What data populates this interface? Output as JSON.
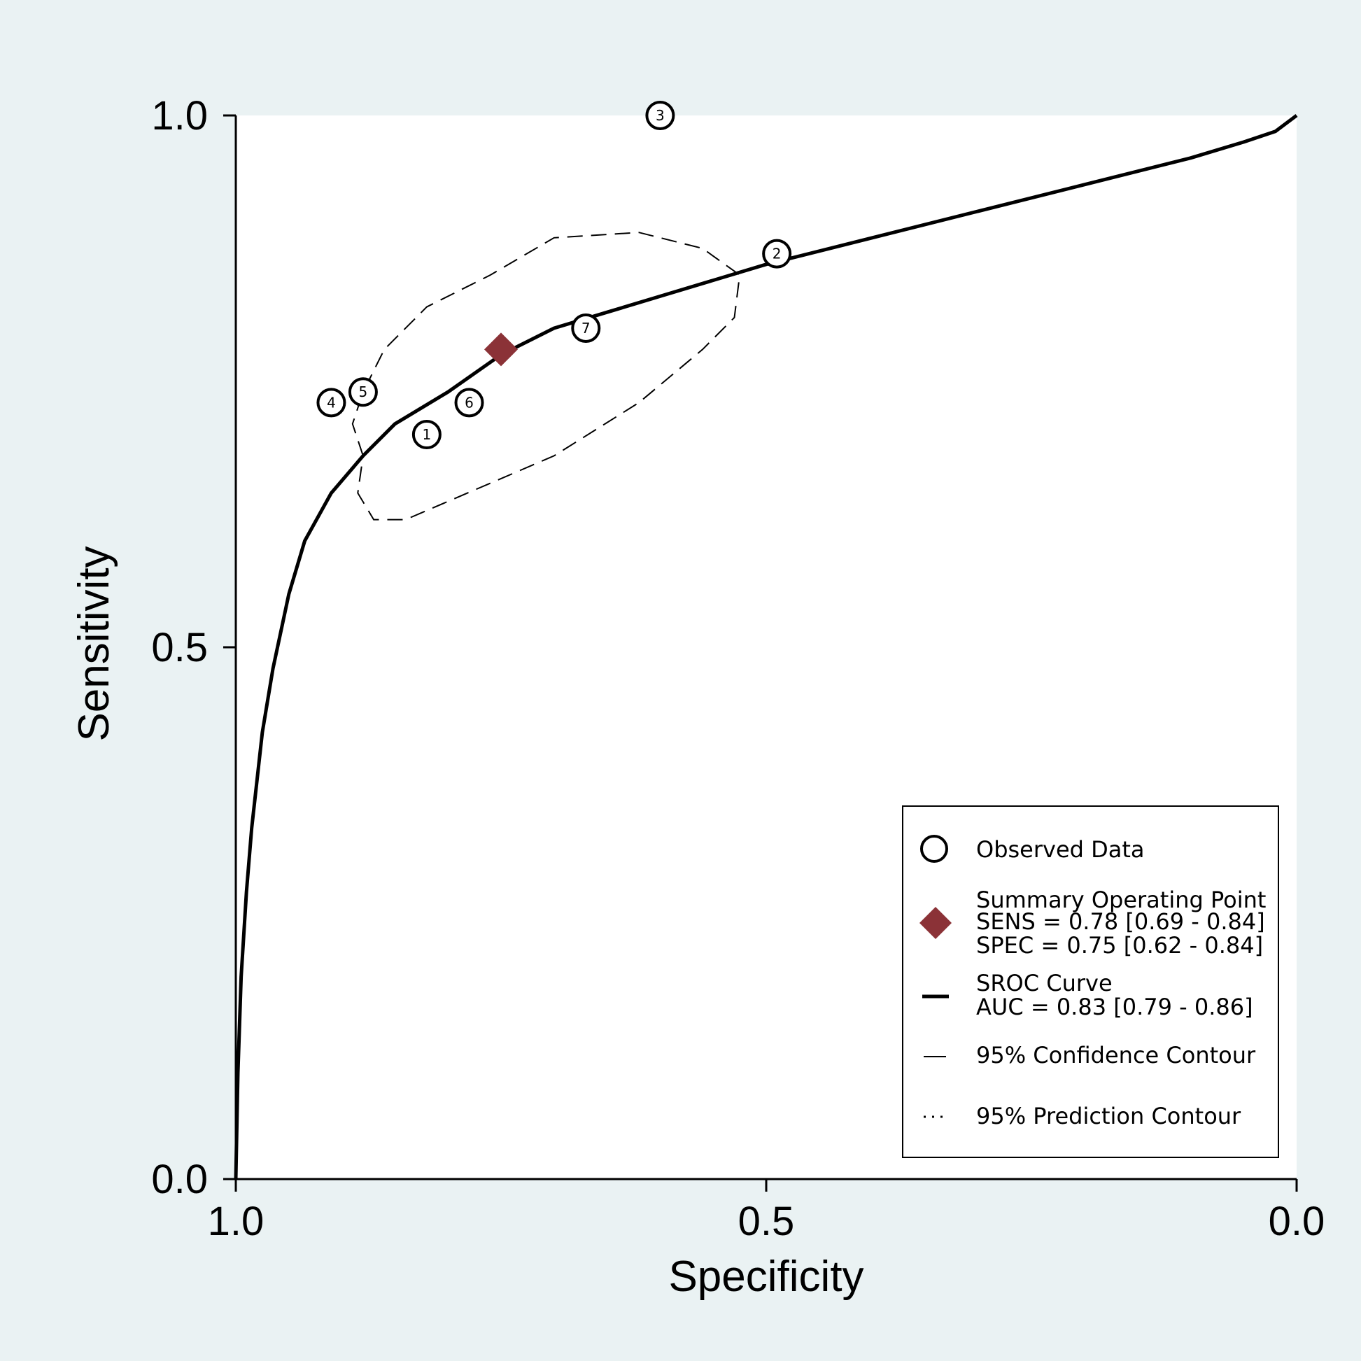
{
  "chart_data": {
    "type": "scatter",
    "xlabel": "Specificity",
    "ylabel": "Sensitivity",
    "xlim": [
      1.0,
      0.0
    ],
    "ylim": [
      0.0,
      1.0
    ],
    "x_reversed": true,
    "grid": false,
    "x_ticks": [
      "1.0",
      "0.5",
      "0.0"
    ],
    "y_ticks": [
      "0.0",
      "0.5",
      "1.0"
    ],
    "studies": [
      {
        "label": "1",
        "specificity": 0.82,
        "sensitivity": 0.7
      },
      {
        "label": "2",
        "specificity": 0.49,
        "sensitivity": 0.87
      },
      {
        "label": "3",
        "specificity": 0.6,
        "sensitivity": 1.0
      },
      {
        "label": "4",
        "specificity": 0.91,
        "sensitivity": 0.73
      },
      {
        "label": "5",
        "specificity": 0.88,
        "sensitivity": 0.74
      },
      {
        "label": "6",
        "specificity": 0.78,
        "sensitivity": 0.73
      },
      {
        "label": "7",
        "specificity": 0.67,
        "sensitivity": 0.8
      }
    ],
    "summary_point": {
      "specificity": 0.75,
      "sensitivity": 0.78
    },
    "sroc_curve": [
      [
        1.0,
        0.0
      ],
      [
        0.998,
        0.1
      ],
      [
        0.995,
        0.19
      ],
      [
        0.99,
        0.27
      ],
      [
        0.985,
        0.33
      ],
      [
        0.975,
        0.42
      ],
      [
        0.965,
        0.48
      ],
      [
        0.95,
        0.55
      ],
      [
        0.935,
        0.6
      ],
      [
        0.91,
        0.645
      ],
      [
        0.88,
        0.68
      ],
      [
        0.85,
        0.71
      ],
      [
        0.8,
        0.74
      ],
      [
        0.75,
        0.775
      ],
      [
        0.7,
        0.8
      ],
      [
        0.65,
        0.815
      ],
      [
        0.6,
        0.83
      ],
      [
        0.5,
        0.86
      ],
      [
        0.4,
        0.885
      ],
      [
        0.3,
        0.91
      ],
      [
        0.2,
        0.935
      ],
      [
        0.1,
        0.96
      ],
      [
        0.05,
        0.975
      ],
      [
        0.02,
        0.985
      ],
      [
        0.0,
        1.0
      ]
    ],
    "confidence_contour": [
      [
        0.88,
        0.68
      ],
      [
        0.89,
        0.71
      ],
      [
        0.88,
        0.74
      ],
      [
        0.86,
        0.78
      ],
      [
        0.82,
        0.82
      ],
      [
        0.76,
        0.85
      ],
      [
        0.7,
        0.885
      ],
      [
        0.62,
        0.89
      ],
      [
        0.56,
        0.875
      ],
      [
        0.525,
        0.85
      ],
      [
        0.53,
        0.81
      ],
      [
        0.56,
        0.78
      ],
      [
        0.62,
        0.73
      ],
      [
        0.7,
        0.68
      ],
      [
        0.77,
        0.65
      ],
      [
        0.84,
        0.62
      ],
      [
        0.87,
        0.62
      ],
      [
        0.885,
        0.645
      ],
      [
        0.88,
        0.68
      ]
    ],
    "legend": {
      "position": "bottom-right",
      "observed": "Observed Data",
      "summary_title": "Summary Operating Point",
      "summary_sens": "SENS = 0.78 [0.69 - 0.84]",
      "summary_spec": "SPEC = 0.75 [0.62 - 0.84]",
      "sroc_title": "SROC Curve",
      "sroc_auc": "AUC = 0.83 [0.79 - 0.86]",
      "confidence": "95% Confidence Contour",
      "prediction": "95% Prediction Contour"
    },
    "colors": {
      "summary": "#8b3237",
      "background": "#eaf2f3",
      "plot": "#ffffff"
    }
  }
}
